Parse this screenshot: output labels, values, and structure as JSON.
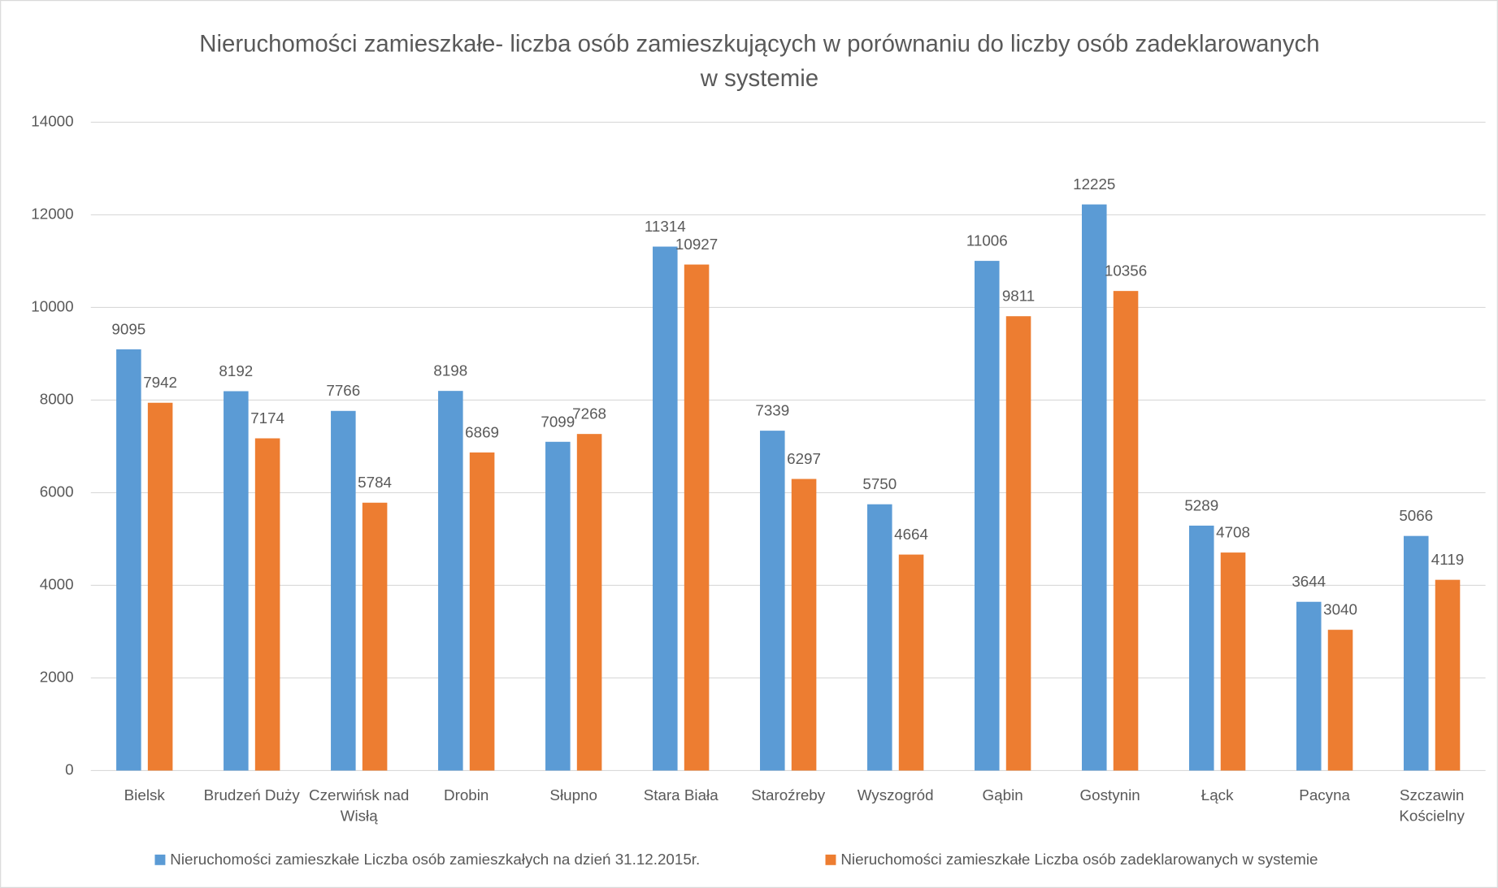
{
  "chart_data": {
    "type": "bar",
    "title": "Nieruchomości zamieszkałe- liczba osób zamieszkujących w porównaniu do liczby osób zadeklarowanych w systemie",
    "categories": [
      "Bielsk",
      "Brudzeń Duży",
      "Czerwińsk nad Wisłą",
      "Drobin",
      "Słupno",
      "Stara Biała",
      "Staroźreby",
      "Wyszogród",
      "Gąbin",
      "Gostynin",
      "Łąck",
      "Pacyna",
      "Szczawin Kościelny"
    ],
    "series": [
      {
        "name": "Nieruchomości zamieszkałe Liczba osób zamieszkałych na dzień 31.12.2015r.",
        "color": "#5b9bd5",
        "values": [
          9095,
          8192,
          7766,
          8198,
          7099,
          11314,
          7339,
          5750,
          11006,
          12225,
          5289,
          3644,
          5066
        ]
      },
      {
        "name": "Nieruchomości zamieszkałe Liczba osób zadeklarowanych w systemie",
        "color": "#ed7d31",
        "values": [
          7942,
          7174,
          5784,
          6869,
          7268,
          10927,
          6297,
          4664,
          9811,
          10356,
          4708,
          3040,
          4119
        ]
      }
    ],
    "ylim": [
      0,
      14000
    ],
    "yticks": [
      0,
      2000,
      4000,
      6000,
      8000,
      10000,
      12000,
      14000
    ],
    "grid": true,
    "legend": "bottom"
  }
}
